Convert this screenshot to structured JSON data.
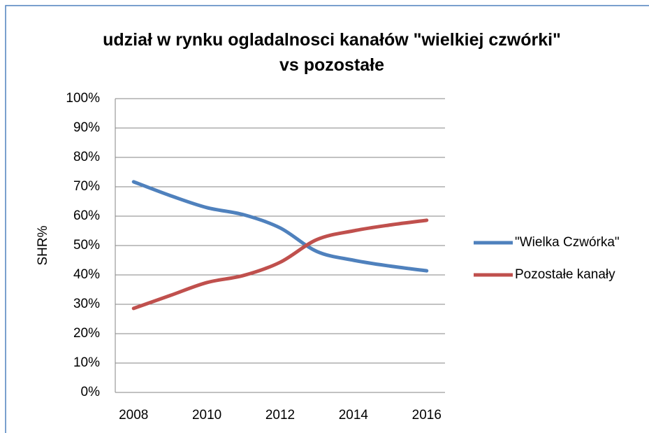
{
  "chart_data": {
    "type": "line",
    "title": "udział w rynku ogladalnosci kanałów \"wielkiej czwórki\" vs pozostałe",
    "y_label": "SHR%",
    "x": [
      2008,
      2009,
      2010,
      2011,
      2012,
      2013,
      2014,
      2015,
      2016
    ],
    "series": [
      {
        "name": "\"Wielka Czwórka\"",
        "color": "#4f81bd",
        "values": [
          71.7,
          67,
          62.9,
          60.5,
          56,
          48,
          45,
          43,
          41.4
        ]
      },
      {
        "name": "Pozostałe kanały",
        "color": "#c0504d",
        "values": [
          28.6,
          33,
          37.4,
          39.8,
          44.3,
          52,
          55,
          57,
          58.6
        ]
      }
    ],
    "xlim": [
      2007.5,
      2016.5
    ],
    "xticks": [
      2008,
      2010,
      2012,
      2014,
      2016
    ],
    "ylim": [
      0,
      100
    ],
    "yticks": [
      {
        "value": 0,
        "label": "0%"
      },
      {
        "value": 10,
        "label": "10%"
      },
      {
        "value": 20,
        "label": "20%"
      },
      {
        "value": 30,
        "label": "30%"
      },
      {
        "value": 40,
        "label": "40%"
      },
      {
        "value": 50,
        "label": "50%"
      },
      {
        "value": 60,
        "label": "60%"
      },
      {
        "value": 70,
        "label": "70%"
      },
      {
        "value": 80,
        "label": "80%"
      },
      {
        "value": 90,
        "label": "90%"
      },
      {
        "value": 100,
        "label": "100%"
      }
    ],
    "grid": true,
    "legend": "right"
  }
}
